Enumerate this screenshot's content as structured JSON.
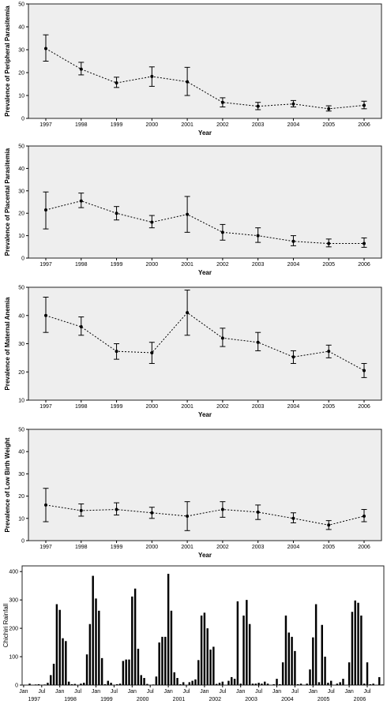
{
  "chart_data": [
    {
      "type": "line",
      "xlabel": "Year",
      "ylabel": "Prevalence of Peripheral Parasitemia",
      "ylim": [
        0,
        50
      ],
      "yticks": [
        0,
        10,
        20,
        30,
        40,
        50
      ],
      "x": [
        "1997",
        "1998",
        "1999",
        "2000",
        "2001",
        "2002",
        "2003",
        "2004",
        "2005",
        "2006"
      ],
      "values": [
        30.5,
        21.5,
        15.5,
        18.3,
        16.0,
        7.0,
        5.3,
        6.3,
        4.2,
        5.7
      ],
      "err_low": [
        25.0,
        19.0,
        13.5,
        14.0,
        10.0,
        5.0,
        3.8,
        5.0,
        3.2,
        4.2
      ],
      "err_high": [
        36.5,
        24.5,
        18.0,
        22.5,
        22.3,
        9.0,
        7.0,
        7.8,
        5.5,
        7.5
      ],
      "grid": false
    },
    {
      "type": "line",
      "xlabel": "Year",
      "ylabel": "Prevalence of Placental Parasitemia",
      "ylim": [
        0,
        50
      ],
      "yticks": [
        0,
        10,
        20,
        30,
        40,
        50
      ],
      "x": [
        "1997",
        "1998",
        "1999",
        "2000",
        "2001",
        "2002",
        "2003",
        "2004",
        "2005",
        "2006"
      ],
      "values": [
        21.5,
        25.5,
        20.0,
        16.0,
        19.5,
        11.5,
        10.0,
        7.5,
        6.5,
        6.5
      ],
      "err_low": [
        13.0,
        22.5,
        17.0,
        13.5,
        11.5,
        8.0,
        7.0,
        5.5,
        5.0,
        4.8
      ],
      "err_high": [
        29.5,
        29.0,
        23.0,
        19.0,
        27.5,
        15.0,
        13.5,
        10.0,
        8.5,
        9.0
      ],
      "grid": false
    },
    {
      "type": "line",
      "xlabel": "Year",
      "ylabel": "Prevalence of Maternal Anemia",
      "ylim": [
        10,
        50
      ],
      "yticks": [
        10,
        20,
        30,
        40,
        50
      ],
      "x": [
        "1997",
        "1998",
        "1999",
        "2000",
        "2001",
        "2002",
        "2003",
        "2004",
        "2005",
        "2006"
      ],
      "values": [
        40.0,
        36.0,
        27.3,
        26.8,
        41.0,
        32.0,
        30.5,
        25.3,
        27.3,
        20.5
      ],
      "err_low": [
        34.0,
        33.0,
        24.5,
        23.0,
        33.0,
        29.0,
        27.5,
        23.0,
        25.0,
        18.0
      ],
      "err_high": [
        46.5,
        39.5,
        30.0,
        30.5,
        49.0,
        35.5,
        34.0,
        27.5,
        29.5,
        23.0
      ],
      "grid": false
    },
    {
      "type": "line",
      "xlabel": "Year",
      "ylabel": "Prevalence of Low Birth Weight",
      "ylim": [
        0,
        50
      ],
      "yticks": [
        0,
        10,
        20,
        30,
        40,
        50
      ],
      "x": [
        "1997",
        "1998",
        "1999",
        "2000",
        "2001",
        "2002",
        "2003",
        "2004",
        "2005",
        "2006"
      ],
      "values": [
        16.0,
        13.5,
        14.0,
        12.5,
        11.0,
        14.0,
        12.8,
        10.0,
        7.0,
        11.0
      ],
      "err_low": [
        8.5,
        11.0,
        11.5,
        10.0,
        4.5,
        10.5,
        9.5,
        8.0,
        5.0,
        8.5
      ],
      "err_high": [
        23.5,
        16.5,
        17.0,
        15.0,
        17.5,
        17.5,
        16.0,
        12.5,
        9.0,
        14.0
      ],
      "grid": false
    },
    {
      "type": "bar",
      "xlabel": "",
      "ylabel": "Chichiri Rainfall",
      "ylim": [
        0,
        420
      ],
      "yticks": [
        0,
        100,
        200,
        300,
        400
      ],
      "month_labels": [
        "Jan",
        "Jul",
        "Jan",
        "Jul",
        "Jan",
        "Jul",
        "Jan",
        "Jul",
        "Jan",
        "Jul",
        "Jan",
        "Jul",
        "Jan",
        "Jul",
        "Jan",
        "Jul",
        "Jan",
        "Jul",
        "Jan",
        "Jul"
      ],
      "year_labels": [
        "1997",
        "1998",
        "1999",
        "2000",
        "2001",
        "2002",
        "2003",
        "2004",
        "2005",
        "2006"
      ],
      "start_month": "1997-01",
      "values": [
        0,
        0,
        5,
        0,
        2,
        3,
        0,
        2,
        8,
        35,
        75,
        285,
        265,
        165,
        155,
        12,
        3,
        4,
        0,
        5,
        8,
        108,
        215,
        385,
        305,
        262,
        95,
        3,
        15,
        8,
        0,
        3,
        5,
        85,
        90,
        90,
        312,
        340,
        128,
        35,
        25,
        4,
        0,
        2,
        30,
        150,
        170,
        170,
        392,
        262,
        45,
        25,
        3,
        10,
        0,
        10,
        15,
        20,
        88,
        245,
        255,
        200,
        125,
        135,
        4,
        8,
        12,
        0,
        15,
        28,
        22,
        295,
        5,
        245,
        300,
        215,
        5,
        5,
        8,
        5,
        12,
        5,
        0,
        3,
        22,
        3,
        80,
        245,
        185,
        170,
        120,
        3,
        5,
        0,
        5,
        55,
        168,
        285,
        10,
        212,
        100,
        8,
        15,
        0,
        5,
        10,
        22,
        0,
        80,
        258,
        298,
        290,
        245,
        5,
        80,
        3,
        5,
        0,
        28,
        2
      ],
      "grid": false
    }
  ]
}
